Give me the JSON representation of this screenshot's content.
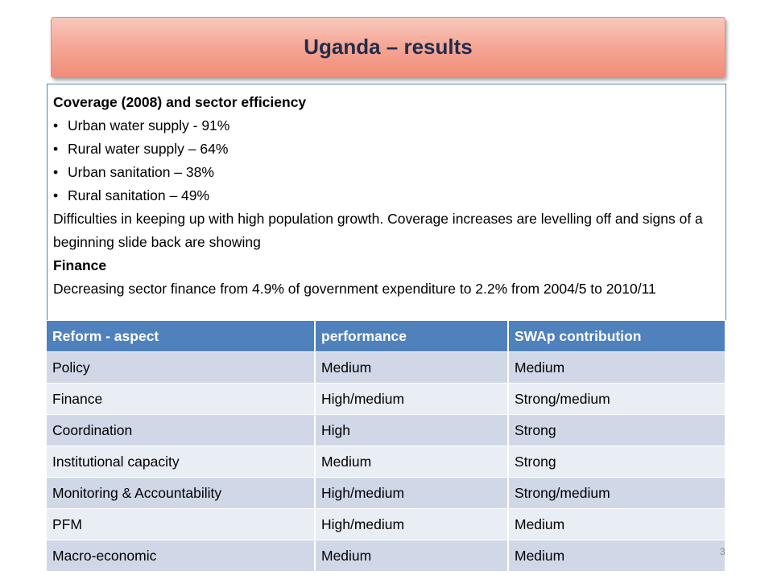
{
  "title": "Uganda – results",
  "content": {
    "heading1": "Coverage (2008) and sector efficiency",
    "bullets": [
      "Urban water supply -  91%",
      "Rural water supply – 64%",
      "Urban sanitation – 38%",
      "Rural sanitation – 49%"
    ],
    "para1": "Difficulties in keeping up with high population growth. Coverage increases are levelling off and signs of a beginning slide back are showing",
    "heading2": "Finance",
    "para2": "Decreasing sector finance from 4.9% of government expenditure to 2.2% from 2004/5 to 2010/11"
  },
  "table": {
    "headers": [
      "Reform - aspect",
      "performance",
      "SWAp contribution"
    ],
    "rows": [
      [
        "Policy",
        "Medium",
        "Medium"
      ],
      [
        "Finance",
        "High/medium",
        "Strong/medium"
      ],
      [
        "Coordination",
        "High",
        "Strong"
      ],
      [
        "Institutional capacity",
        "Medium",
        "Strong"
      ],
      [
        "Monitoring & Accountability",
        "High/medium",
        "Strong/medium"
      ],
      [
        "PFM",
        "High/medium",
        "Medium"
      ],
      [
        "Macro-economic",
        "Medium",
        "Medium"
      ]
    ]
  },
  "page_number": "3",
  "colors": {
    "title_fill": "#f5a898",
    "table_header": "#4f81bd",
    "row_odd": "#d0d8e8",
    "row_even": "#e9edf4"
  }
}
